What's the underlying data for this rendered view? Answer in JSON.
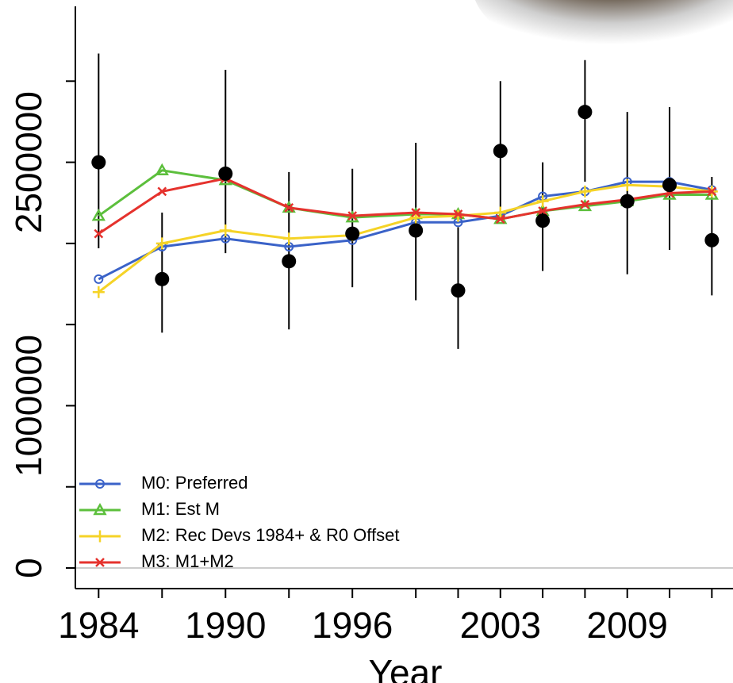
{
  "chart_data": {
    "type": "line",
    "x_title": "Year",
    "x": [
      1984,
      1987,
      1990,
      1993,
      1996,
      1999,
      2001,
      2003,
      2005,
      2007,
      2009,
      2011,
      2013
    ],
    "xlim": [
      1982.9,
      2014
    ],
    "ylim": [
      -127000,
      3500000
    ],
    "xticks": [
      1984,
      {
        "value": 1987,
        "label": null
      },
      1990,
      {
        "value": 1993,
        "label": null
      },
      1996,
      {
        "value": 1999,
        "label": null
      },
      {
        "value": 2001,
        "label": null
      },
      2003,
      {
        "value": 2005,
        "label": null
      },
      {
        "value": 2007,
        "label": null
      },
      2009,
      {
        "value": 2011,
        "label": null
      },
      {
        "value": 2013,
        "label": null
      }
    ],
    "yticks": [
      0,
      {
        "value": 500000,
        "label": null
      },
      1000000,
      {
        "value": 1500000,
        "label": null
      },
      {
        "value": 2000000,
        "label": null
      },
      2500000,
      {
        "value": 3000000,
        "label": null
      }
    ],
    "legend": "bottom-left",
    "observed": {
      "color": "#000000",
      "values": [
        2500000,
        1780000,
        2430000,
        1890000,
        2060000,
        2080000,
        1710000,
        2570000,
        2140000,
        2810000,
        2260000,
        2360000,
        2020000
      ],
      "lower": [
        1970000,
        1450000,
        1940000,
        1470000,
        1730000,
        1650000,
        1350000,
        2190000,
        1830000,
        2380000,
        1810000,
        1960000,
        1680000
      ],
      "upper": [
        3170000,
        2190000,
        3070000,
        2440000,
        2460000,
        2620000,
        2100000,
        3000000,
        2500000,
        3130000,
        2810000,
        2840000,
        2410000
      ]
    },
    "series": [
      {
        "name": "M0: Preferred",
        "color": "#3a62c8",
        "marker": "circle",
        "values": [
          1780000,
          1980000,
          2030000,
          1980000,
          2020000,
          2130000,
          2130000,
          2170000,
          2290000,
          2320000,
          2380000,
          2380000,
          2330000
        ]
      },
      {
        "name": "M1: Est M",
        "color": "#5cbf3c",
        "marker": "triangle",
        "values": [
          2170000,
          2450000,
          2390000,
          2220000,
          2160000,
          2180000,
          2180000,
          2150000,
          2200000,
          2230000,
          2260000,
          2300000,
          2300000
        ]
      },
      {
        "name": "M2: Rec Devs 1984+ & R0 Offset",
        "color": "#f5d327",
        "marker": "plus",
        "values": [
          1700000,
          2000000,
          2080000,
          2030000,
          2050000,
          2160000,
          2170000,
          2190000,
          2260000,
          2320000,
          2360000,
          2350000,
          2320000
        ]
      },
      {
        "name": "M3: M1+M2",
        "color": "#e5322d",
        "marker": "x",
        "values": [
          2060000,
          2320000,
          2400000,
          2220000,
          2170000,
          2190000,
          2180000,
          2150000,
          2200000,
          2240000,
          2270000,
          2310000,
          2320000
        ]
      }
    ]
  }
}
